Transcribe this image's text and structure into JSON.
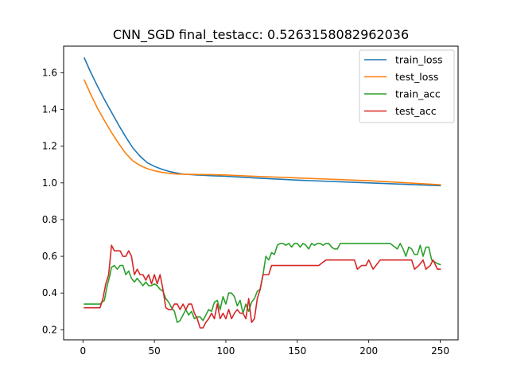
{
  "chart_data": {
    "type": "line",
    "title": "CNN_SGD  final_testacc: 0.5263158082962036",
    "xlabel": "",
    "ylabel": "",
    "xlim": [
      -13.5,
      262.5
    ],
    "ylim": [
      0.145,
      1.745
    ],
    "xticks": [
      0,
      50,
      100,
      150,
      200,
      250
    ],
    "yticks": [
      0.2,
      0.4,
      0.6,
      0.8,
      1.0,
      1.2,
      1.4,
      1.6
    ],
    "grid": false,
    "legend_position": "top-right",
    "series": [
      {
        "name": "train_loss",
        "color": "#1f77b4",
        "x": [
          1,
          5,
          10,
          15,
          20,
          25,
          30,
          35,
          40,
          45,
          50,
          55,
          60,
          65,
          70,
          80,
          90,
          100,
          120,
          150,
          200,
          250
        ],
        "y": [
          1.68,
          1.61,
          1.53,
          1.455,
          1.385,
          1.315,
          1.25,
          1.19,
          1.145,
          1.11,
          1.09,
          1.075,
          1.063,
          1.055,
          1.048,
          1.043,
          1.039,
          1.036,
          1.027,
          1.015,
          1.0,
          0.985
        ]
      },
      {
        "name": "test_loss",
        "color": "#ff7f0e",
        "x": [
          1,
          5,
          10,
          15,
          20,
          25,
          30,
          35,
          40,
          45,
          50,
          55,
          60,
          65,
          70,
          80,
          90,
          100,
          120,
          150,
          200,
          250
        ],
        "y": [
          1.56,
          1.49,
          1.41,
          1.34,
          1.275,
          1.215,
          1.16,
          1.12,
          1.095,
          1.078,
          1.066,
          1.058,
          1.052,
          1.049,
          1.047,
          1.046,
          1.045,
          1.043,
          1.036,
          1.027,
          1.012,
          0.99
        ]
      },
      {
        "name": "train_acc",
        "color": "#2ca02c",
        "x": [
          1,
          8,
          12,
          15,
          17,
          19,
          20,
          22,
          24,
          26,
          28,
          30,
          32,
          34,
          36,
          38,
          40,
          42,
          44,
          46,
          48,
          50,
          52,
          54,
          56,
          58,
          60,
          62,
          64,
          66,
          68,
          70,
          72,
          74,
          76,
          78,
          80,
          82,
          84,
          86,
          88,
          90,
          92,
          94,
          96,
          98,
          100,
          102,
          104,
          106,
          108,
          110,
          112,
          114,
          116,
          118,
          120,
          122,
          124,
          126,
          128,
          130,
          132,
          134,
          136,
          138,
          140,
          142,
          144,
          146,
          148,
          150,
          152,
          154,
          156,
          158,
          160,
          162,
          164,
          166,
          168,
          170,
          172,
          174,
          176,
          178,
          180,
          185,
          190,
          195,
          200,
          205,
          210,
          215,
          220,
          222,
          224,
          226,
          228,
          230,
          232,
          234,
          236,
          238,
          240,
          242,
          244,
          246,
          248,
          250
        ],
        "y": [
          0.34,
          0.34,
          0.34,
          0.36,
          0.44,
          0.5,
          0.54,
          0.55,
          0.53,
          0.55,
          0.55,
          0.5,
          0.52,
          0.48,
          0.46,
          0.48,
          0.46,
          0.44,
          0.46,
          0.44,
          0.44,
          0.45,
          0.44,
          0.42,
          0.41,
          0.37,
          0.35,
          0.32,
          0.3,
          0.24,
          0.25,
          0.28,
          0.31,
          0.28,
          0.3,
          0.26,
          0.27,
          0.27,
          0.25,
          0.28,
          0.31,
          0.3,
          0.35,
          0.36,
          0.31,
          0.38,
          0.34,
          0.4,
          0.4,
          0.38,
          0.33,
          0.36,
          0.29,
          0.34,
          0.3,
          0.35,
          0.37,
          0.41,
          0.42,
          0.5,
          0.6,
          0.58,
          0.62,
          0.61,
          0.66,
          0.67,
          0.67,
          0.66,
          0.67,
          0.65,
          0.67,
          0.67,
          0.65,
          0.67,
          0.66,
          0.64,
          0.67,
          0.66,
          0.67,
          0.67,
          0.66,
          0.67,
          0.67,
          0.65,
          0.64,
          0.64,
          0.67,
          0.67,
          0.67,
          0.67,
          0.67,
          0.67,
          0.67,
          0.67,
          0.64,
          0.67,
          0.64,
          0.6,
          0.65,
          0.64,
          0.61,
          0.61,
          0.66,
          0.6,
          0.65,
          0.65,
          0.58,
          0.57,
          0.56,
          0.555
        ]
      },
      {
        "name": "test_acc",
        "color": "#d62728",
        "x": [
          1,
          8,
          12,
          14,
          16,
          18,
          19,
          20,
          22,
          24,
          26,
          28,
          30,
          32,
          34,
          36,
          38,
          40,
          42,
          44,
          46,
          48,
          50,
          52,
          54,
          56,
          58,
          60,
          62,
          64,
          66,
          68,
          70,
          72,
          74,
          76,
          78,
          80,
          82,
          84,
          86,
          88,
          90,
          92,
          94,
          96,
          98,
          100,
          102,
          104,
          106,
          108,
          110,
          112,
          114,
          116,
          118,
          120,
          122,
          124,
          126,
          128,
          130,
          132,
          134,
          136,
          140,
          145,
          150,
          155,
          160,
          165,
          170,
          175,
          180,
          185,
          190,
          192,
          195,
          198,
          200,
          203,
          205,
          208,
          210,
          215,
          220,
          225,
          230,
          232,
          235,
          238,
          240,
          243,
          245,
          248,
          250
        ],
        "y": [
          0.32,
          0.32,
          0.32,
          0.37,
          0.45,
          0.5,
          0.58,
          0.66,
          0.63,
          0.63,
          0.63,
          0.6,
          0.6,
          0.63,
          0.6,
          0.5,
          0.53,
          0.5,
          0.5,
          0.47,
          0.5,
          0.45,
          0.5,
          0.45,
          0.5,
          0.42,
          0.32,
          0.31,
          0.31,
          0.34,
          0.34,
          0.31,
          0.34,
          0.31,
          0.34,
          0.34,
          0.29,
          0.26,
          0.21,
          0.21,
          0.24,
          0.26,
          0.29,
          0.26,
          0.34,
          0.26,
          0.29,
          0.26,
          0.31,
          0.26,
          0.29,
          0.31,
          0.29,
          0.29,
          0.26,
          0.37,
          0.24,
          0.26,
          0.37,
          0.42,
          0.5,
          0.5,
          0.5,
          0.55,
          0.55,
          0.55,
          0.55,
          0.55,
          0.55,
          0.55,
          0.55,
          0.55,
          0.58,
          0.58,
          0.58,
          0.58,
          0.58,
          0.53,
          0.55,
          0.55,
          0.58,
          0.53,
          0.55,
          0.58,
          0.58,
          0.58,
          0.58,
          0.58,
          0.58,
          0.53,
          0.55,
          0.58,
          0.53,
          0.55,
          0.58,
          0.53,
          0.53
        ]
      }
    ]
  }
}
